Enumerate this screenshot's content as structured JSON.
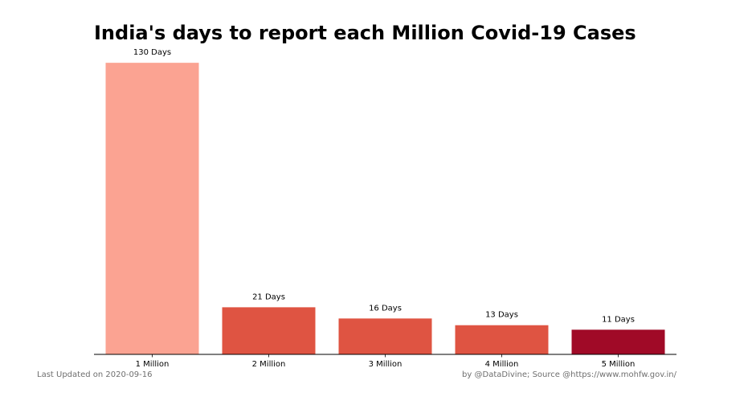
{
  "chart_data": {
    "type": "bar",
    "title": "India's days to report each Million Covid-19 Cases",
    "xlabel": "",
    "ylabel": "",
    "categories": [
      "1 Million",
      "2 Million",
      "3 Million",
      "4 Million",
      "5 Million"
    ],
    "values": [
      130,
      21,
      16,
      13,
      11
    ],
    "value_labels": [
      "130 Days",
      "21 Days",
      "16 Days",
      "13 Days",
      "11 Days"
    ],
    "bar_colors": [
      "#fba392",
      "#df5442",
      "#df5442",
      "#df5442",
      "#a00a27"
    ],
    "ylim": [
      0,
      136.5
    ],
    "grid": false,
    "legend": "none"
  },
  "footer": {
    "left": "Last Updated on 2020-09-16",
    "right": "by @DataDivine; Source @https://www.mohfw.gov.in/"
  },
  "axis_color": "#000000"
}
